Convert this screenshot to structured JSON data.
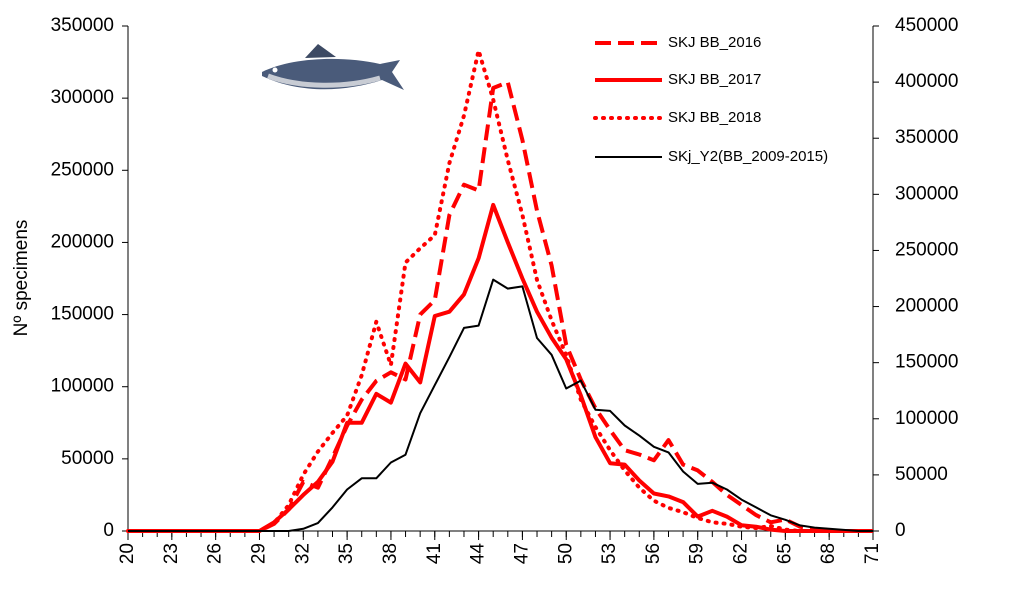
{
  "chart_data": {
    "type": "line",
    "y_label": "Nº specimens",
    "x": [
      20,
      21,
      22,
      23,
      24,
      25,
      26,
      27,
      28,
      29,
      30,
      31,
      32,
      33,
      34,
      35,
      36,
      37,
      38,
      39,
      40,
      41,
      42,
      43,
      44,
      45,
      46,
      47,
      48,
      49,
      50,
      51,
      52,
      53,
      54,
      55,
      56,
      57,
      58,
      59,
      60,
      61,
      62,
      63,
      64,
      65,
      66,
      67,
      68,
      69,
      70,
      71
    ],
    "xlim": [
      20,
      71
    ],
    "xticks": [
      20,
      23,
      26,
      29,
      32,
      35,
      38,
      41,
      44,
      47,
      50,
      53,
      56,
      59,
      62,
      65,
      68,
      71
    ],
    "ylim": [
      0,
      350000
    ],
    "yticks": [
      0,
      50000,
      100000,
      150000,
      200000,
      250000,
      300000,
      350000
    ],
    "y2lim": [
      0,
      450000
    ],
    "y2ticks": [
      0,
      50000,
      100000,
      150000,
      200000,
      250000,
      300000,
      350000,
      400000,
      450000
    ],
    "legend": "top-right",
    "series": [
      {
        "name": "SKJ BB_2016",
        "color": "#ff0000",
        "style": "dashed",
        "values": [
          0,
          0,
          0,
          0,
          0,
          0,
          0,
          0,
          0,
          0,
          5000,
          15000,
          34000,
          30000,
          51000,
          73000,
          91000,
          104000,
          110000,
          105000,
          150000,
          160000,
          219000,
          240000,
          236000,
          307000,
          311000,
          271000,
          222000,
          184000,
          129000,
          105000,
          85000,
          70000,
          56000,
          53000,
          49000,
          63000,
          46000,
          42000,
          34000,
          25000,
          18000,
          11000,
          6000,
          8000,
          3000,
          1000,
          0,
          0,
          0,
          0
        ]
      },
      {
        "name": "SKJ BB_2017",
        "color": "#ff0000",
        "style": "solid",
        "values": [
          0,
          0,
          0,
          0,
          0,
          0,
          0,
          0,
          0,
          0,
          6000,
          15000,
          25000,
          34000,
          48000,
          75000,
          75000,
          95000,
          89000,
          116000,
          103000,
          149000,
          152000,
          164000,
          189000,
          226000,
          200000,
          175000,
          152000,
          134000,
          119000,
          94000,
          65000,
          47000,
          46000,
          35000,
          26000,
          24000,
          20000,
          10000,
          14000,
          10000,
          4000,
          3000,
          1000,
          0,
          0,
          0,
          0,
          0,
          0,
          0
        ]
      },
      {
        "name": "SKJ BB_2018",
        "color": "#ff0000",
        "style": "dotted",
        "values": [
          0,
          0,
          0,
          0,
          0,
          0,
          0,
          0,
          0,
          0,
          5500,
          18000,
          39000,
          55000,
          68000,
          80000,
          108000,
          145000,
          115000,
          186000,
          196000,
          205000,
          255000,
          288000,
          333000,
          299000,
          257000,
          219000,
          174000,
          146000,
          122000,
          91000,
          72000,
          56000,
          42000,
          30000,
          21000,
          16000,
          13000,
          9000,
          6000,
          5000,
          3000,
          2000,
          3500,
          1000,
          0,
          0,
          0,
          0,
          0,
          0
        ]
      },
      {
        "name": "SKj_Y2(BB_2009-2015)",
        "color": "#000000",
        "style": "thin",
        "axis": "y2",
        "values": [
          0,
          0,
          0,
          0,
          0,
          0,
          0,
          0,
          0,
          0,
          0,
          0,
          2000,
          7000,
          21000,
          37000,
          47000,
          47000,
          61000,
          68000,
          105000,
          130000,
          155000,
          181000,
          183000,
          224000,
          216000,
          218000,
          172000,
          157000,
          127000,
          134000,
          108000,
          107000,
          94000,
          85000,
          75000,
          70000,
          53000,
          42000,
          43000,
          37000,
          28000,
          21000,
          14000,
          10000,
          5000,
          3000,
          2000,
          1000,
          0,
          0
        ]
      }
    ]
  }
}
